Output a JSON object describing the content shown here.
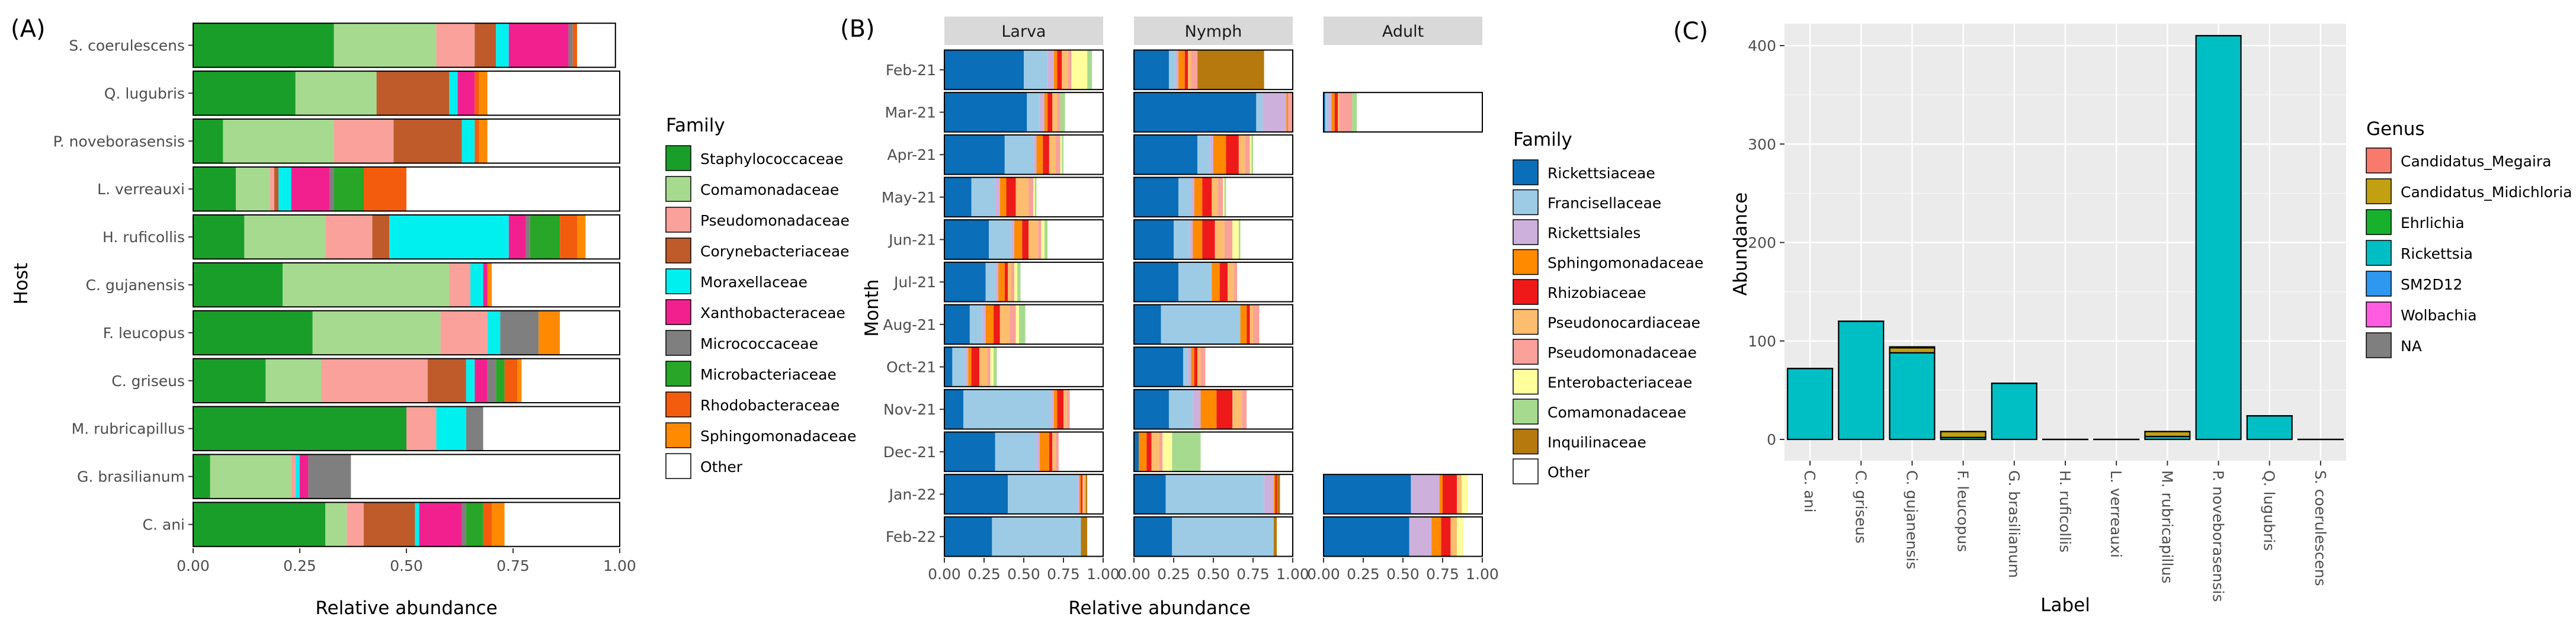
{
  "colors": {
    "Staphylococcaceae": "#1a9e2a",
    "Comamonadaceae": "#a6db8f",
    "Pseudomonadaceae": "#f9a19a",
    "Corynebacteriaceae": "#bf5b2b",
    "Moraxellaceae": "#00f0f0",
    "Xanthobacteraceae": "#f2208f",
    "Micrococcaceae": "#7f7f7f",
    "Microbacteriaceae": "#27a627",
    "Rhodobacteraceae": "#f45c0d",
    "Sphingomonadaceae": "#ff8a00",
    "Other": "#ffffff",
    "Rickettsiaceae": "#0a6eb8",
    "Francisellaceae": "#9dcbe6",
    "Rickettsiales": "#cdb1dc",
    "Rhizobiaceae": "#ee1a1a",
    "Pseudonocardiaceae": "#fdbd6e",
    "Enterobacteriaceae": "#ffff9c",
    "Inquilinaceae": "#b5790d",
    "Candidatus_Megaira": "#f77a6d",
    "Candidatus_Midichloria": "#c3a012",
    "Ehrlichia": "#18b12e",
    "Rickettsia": "#00bfc4",
    "SM2D12": "#2e98f0",
    "Wolbachia": "#ff5ce1",
    "NA": "#7f7f7f"
  },
  "chart_data": [
    {
      "id": "A",
      "type": "bar",
      "orientation": "horizontal",
      "stacked": true,
      "panel_label": "(A)",
      "xlabel": "Relative abundance",
      "ylabel": "Host",
      "xlim": [
        0,
        1
      ],
      "xticks": [
        "0.00",
        "0.25",
        "0.50",
        "0.75",
        "1.00"
      ],
      "categories": [
        "S. coerulescens",
        "Q. lugubris",
        "P. noveborasensis",
        "L. verreauxi",
        "H. ruficollis",
        "C. gujanensis",
        "F. leucopus",
        "C. griseus",
        "M. rubricapillus",
        "G. brasilianum",
        "C. ani"
      ],
      "legend_title": "Family",
      "legend": [
        "Staphylococcaceae",
        "Comamonadaceae",
        "Pseudomonadaceae",
        "Corynebacteriaceae",
        "Moraxellaceae",
        "Xanthobacteraceae",
        "Micrococcaceae",
        "Microbacteriaceae",
        "Rhodobacteraceae",
        "Sphingomonadaceae",
        "Other"
      ],
      "series": [
        {
          "name": "Staphylococcaceae",
          "values": [
            0.33,
            0.24,
            0.07,
            0.1,
            0.12,
            0.21,
            0.28,
            0.17,
            0.5,
            0.04,
            0.31
          ]
        },
        {
          "name": "Comamonadaceae",
          "values": [
            0.24,
            0.19,
            0.26,
            0.08,
            0.19,
            0.39,
            0.3,
            0.13,
            0.0,
            0.19,
            0.05
          ]
        },
        {
          "name": "Pseudomonadaceae",
          "values": [
            0.09,
            0.0,
            0.14,
            0.01,
            0.11,
            0.05,
            0.11,
            0.25,
            0.07,
            0.01,
            0.04
          ]
        },
        {
          "name": "Corynebacteriaceae",
          "values": [
            0.05,
            0.17,
            0.16,
            0.01,
            0.04,
            0.0,
            0.0,
            0.09,
            0.0,
            0.0,
            0.12
          ]
        },
        {
          "name": "Moraxellaceae",
          "values": [
            0.03,
            0.02,
            0.03,
            0.03,
            0.28,
            0.03,
            0.03,
            0.02,
            0.07,
            0.01,
            0.01
          ]
        },
        {
          "name": "Xanthobacteraceae",
          "values": [
            0.14,
            0.04,
            0.0,
            0.09,
            0.04,
            0.01,
            0.0,
            0.03,
            0.0,
            0.02,
            0.1
          ]
        },
        {
          "name": "Micrococcaceae",
          "values": [
            0.01,
            0.0,
            0.0,
            0.01,
            0.01,
            0.0,
            0.09,
            0.02,
            0.04,
            0.1,
            0.01
          ]
        },
        {
          "name": "Microbacteriaceae",
          "values": [
            0.0,
            0.0,
            0.0,
            0.07,
            0.07,
            0.0,
            0.0,
            0.02,
            0.0,
            0.0,
            0.04
          ]
        },
        {
          "name": "Rhodobacteraceae",
          "values": [
            0.01,
            0.01,
            0.01,
            0.1,
            0.04,
            0.0,
            0.0,
            0.03,
            0.0,
            0.0,
            0.02
          ]
        },
        {
          "name": "Sphingomonadaceae",
          "values": [
            0.0,
            0.02,
            0.02,
            0.0,
            0.02,
            0.01,
            0.05,
            0.01,
            0.0,
            0.0,
            0.03
          ]
        },
        {
          "name": "Other",
          "values": [
            0.09,
            0.31,
            0.31,
            0.5,
            0.08,
            0.3,
            0.14,
            0.23,
            0.32,
            0.63,
            0.27
          ]
        }
      ]
    },
    {
      "id": "B",
      "type": "bar",
      "orientation": "horizontal",
      "stacked": true,
      "faceted": true,
      "panel_label": "(B)",
      "xlabel": "Relative abundance",
      "ylabel": "Month",
      "xlim": [
        0,
        1
      ],
      "xticks": [
        "0.00",
        "0.25",
        "0.50",
        "0.75",
        "1.00"
      ],
      "facets": [
        "Larva",
        "Nymph",
        "Adult"
      ],
      "categories": [
        "Feb-21",
        "Mar-21",
        "Apr-21",
        "May-21",
        "Jun-21",
        "Jul-21",
        "Aug-21",
        "Oct-21",
        "Nov-21",
        "Dec-21",
        "Jan-22",
        "Feb-22"
      ],
      "legend_title": "Family",
      "legend": [
        "Rickettsiaceae",
        "Francisellaceae",
        "Rickettsiales",
        "Sphingomonadaceae",
        "Rhizobiaceae",
        "Pseudonocardiaceae",
        "Pseudomonadaceae",
        "Enterobacteriaceae",
        "Comamonadaceae",
        "Inquilinaceae",
        "Other"
      ],
      "series_order": [
        "Rickettsiaceae",
        "Francisellaceae",
        "Rickettsiales",
        "Sphingomonadaceae",
        "Rhizobiaceae",
        "Pseudonocardiaceae",
        "Pseudomonadaceae",
        "Enterobacteriaceae",
        "Comamonadaceae",
        "Inquilinaceae",
        "Other"
      ],
      "values": {
        "Larva": [
          [
            0.5,
            0.15,
            0.04,
            0.02,
            0.03,
            0.04,
            0.02,
            0.1,
            0.03,
            0.0,
            0.07
          ],
          [
            0.52,
            0.08,
            0.03,
            0.02,
            0.03,
            0.03,
            0.02,
            0.0,
            0.03,
            0.0,
            0.24
          ],
          [
            0.38,
            0.18,
            0.02,
            0.04,
            0.04,
            0.04,
            0.03,
            0.01,
            0.01,
            0.0,
            0.25
          ],
          [
            0.17,
            0.15,
            0.03,
            0.04,
            0.06,
            0.08,
            0.03,
            0.01,
            0.01,
            0.0,
            0.42
          ],
          [
            0.28,
            0.14,
            0.02,
            0.05,
            0.04,
            0.06,
            0.02,
            0.02,
            0.02,
            0.0,
            0.35
          ],
          [
            0.26,
            0.06,
            0.02,
            0.04,
            0.02,
            0.02,
            0.02,
            0.02,
            0.02,
            0.0,
            0.52
          ],
          [
            0.16,
            0.08,
            0.02,
            0.05,
            0.04,
            0.06,
            0.04,
            0.02,
            0.04,
            0.0,
            0.49
          ],
          [
            0.05,
            0.08,
            0.02,
            0.02,
            0.05,
            0.05,
            0.02,
            0.02,
            0.02,
            0.0,
            0.67
          ],
          [
            0.12,
            0.55,
            0.02,
            0.02,
            0.04,
            0.02,
            0.02,
            0.0,
            0.0,
            0.0,
            0.21
          ],
          [
            0.32,
            0.26,
            0.02,
            0.06,
            0.02,
            0.02,
            0.02,
            0.0,
            0.0,
            0.0,
            0.28
          ],
          [
            0.4,
            0.44,
            0.01,
            0.01,
            0.01,
            0.02,
            0.0,
            0.0,
            0.0,
            0.01,
            0.1
          ],
          [
            0.3,
            0.56,
            0.0,
            0.0,
            0.0,
            0.0,
            0.0,
            0.0,
            0.0,
            0.04,
            0.1
          ]
        ],
        "Nymph": [
          [
            0.22,
            0.04,
            0.02,
            0.04,
            0.02,
            0.02,
            0.04,
            0.0,
            0.0,
            0.42,
            0.18
          ],
          [
            0.77,
            0.04,
            0.15,
            0.01,
            0.0,
            0.0,
            0.03,
            0.0,
            0.0,
            0.0,
            0.0
          ],
          [
            0.4,
            0.08,
            0.02,
            0.08,
            0.08,
            0.04,
            0.03,
            0.01,
            0.01,
            0.0,
            0.25
          ],
          [
            0.28,
            0.08,
            0.02,
            0.05,
            0.06,
            0.04,
            0.03,
            0.01,
            0.01,
            0.0,
            0.42
          ],
          [
            0.25,
            0.1,
            0.02,
            0.06,
            0.08,
            0.06,
            0.05,
            0.04,
            0.01,
            0.0,
            0.33
          ],
          [
            0.28,
            0.21,
            0.0,
            0.05,
            0.05,
            0.04,
            0.02,
            0.0,
            0.0,
            0.0,
            0.35
          ],
          [
            0.17,
            0.5,
            0.0,
            0.04,
            0.02,
            0.02,
            0.04,
            0.0,
            0.0,
            0.0,
            0.21
          ],
          [
            0.31,
            0.03,
            0.02,
            0.02,
            0.02,
            0.02,
            0.03,
            0.0,
            0.0,
            0.0,
            0.55
          ],
          [
            0.22,
            0.15,
            0.05,
            0.1,
            0.1,
            0.06,
            0.03,
            0.0,
            0.0,
            0.0,
            0.29
          ],
          [
            0.03,
            0.0,
            0.0,
            0.05,
            0.03,
            0.05,
            0.02,
            0.06,
            0.18,
            0.0,
            0.58
          ],
          [
            0.2,
            0.62,
            0.06,
            0.01,
            0.01,
            0.0,
            0.0,
            0.0,
            0.0,
            0.02,
            0.08
          ],
          [
            0.24,
            0.64,
            0.0,
            0.0,
            0.0,
            0.0,
            0.0,
            0.0,
            0.0,
            0.02,
            0.1
          ]
        ],
        "Adult": [
          null,
          [
            0.01,
            0.02,
            0.02,
            0.02,
            0.02,
            0.01,
            0.08,
            0.0,
            0.03,
            0.0,
            0.79
          ],
          null,
          null,
          null,
          null,
          null,
          null,
          null,
          null,
          [
            0.55,
            0.0,
            0.18,
            0.02,
            0.09,
            0.03,
            0.0,
            0.04,
            0.0,
            0.0,
            0.09
          ],
          [
            0.54,
            0.0,
            0.14,
            0.06,
            0.06,
            0.04,
            0.0,
            0.04,
            0.0,
            0.0,
            0.12
          ]
        ]
      }
    },
    {
      "id": "C",
      "type": "bar",
      "stacked": true,
      "panel_label": "(C)",
      "xlabel": "Label",
      "ylabel": "Abundance",
      "ylim": [
        0,
        425
      ],
      "yticks": [
        0,
        100,
        200,
        300,
        400
      ],
      "categories": [
        "C. ani",
        "C. griseus",
        "C. gujanensis",
        "F. leucopus",
        "G. brasilianum",
        "H. ruficollis",
        "L. verreauxi",
        "M. rubricapillus",
        "P. noveborasensis",
        "Q. lugubris",
        "S. coerulescens"
      ],
      "legend_title": "Genus",
      "legend": [
        "Candidatus_Megaira",
        "Candidatus_Midichloria",
        "Ehrlichia",
        "Rickettsia",
        "SM2D12",
        "Wolbachia",
        "NA"
      ],
      "series": [
        {
          "name": "Rickettsia",
          "values": [
            72,
            120,
            88,
            2,
            57,
            0,
            0,
            3,
            410,
            24,
            0
          ]
        },
        {
          "name": "Candidatus_Midichloria",
          "values": [
            0,
            0,
            5,
            6,
            0,
            0,
            0,
            5,
            0,
            0,
            0
          ]
        },
        {
          "name": "Candidatus_Megaira",
          "values": [
            0,
            0,
            1,
            0,
            0,
            0,
            0,
            0,
            0,
            0,
            0
          ]
        }
      ]
    }
  ]
}
